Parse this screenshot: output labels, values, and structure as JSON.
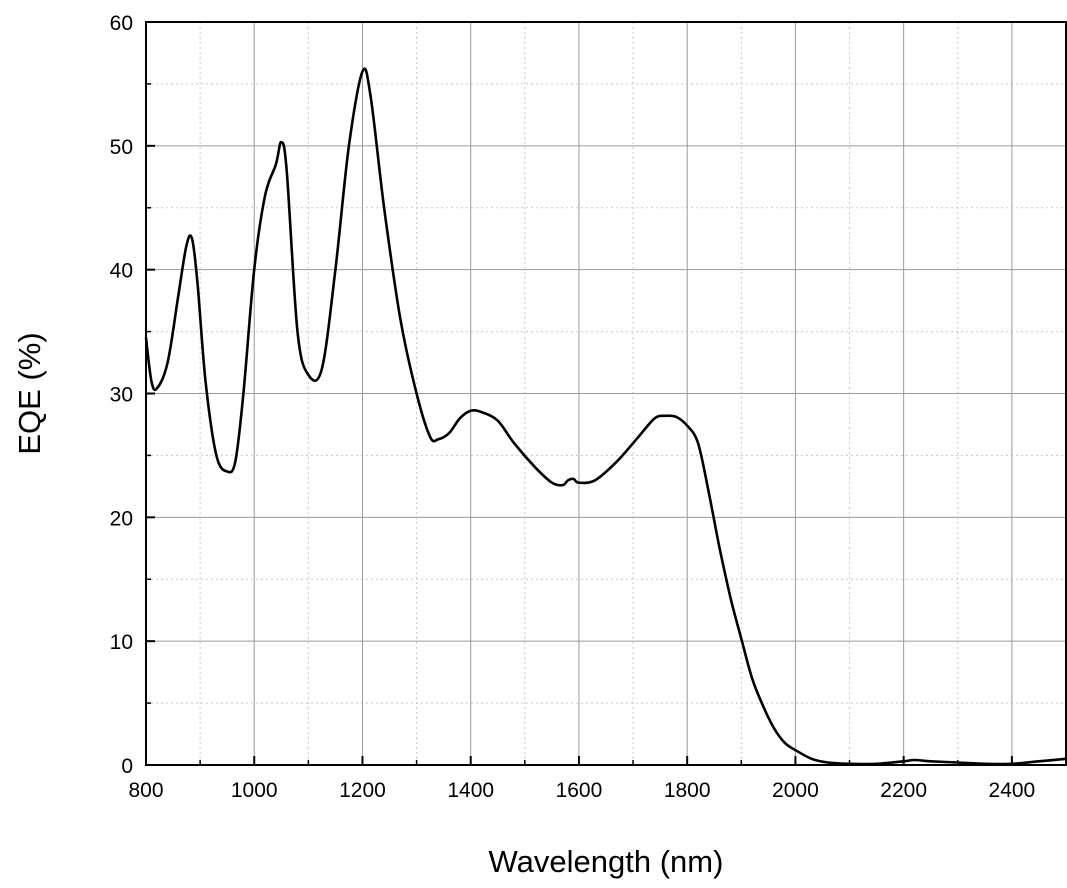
{
  "chart_data": {
    "type": "line",
    "title": "",
    "xlabel": "Wavelength (nm)",
    "ylabel": "EQE (%)",
    "xlim": [
      800,
      2500
    ],
    "ylim": [
      0,
      60
    ],
    "x_ticks": [
      800,
      1000,
      1200,
      1400,
      1600,
      1800,
      2000,
      2200,
      2400
    ],
    "y_ticks": [
      0,
      10,
      20,
      30,
      40,
      50,
      60
    ],
    "grid": true,
    "line_color": "#000000",
    "series": [
      {
        "x": [
          800,
          810,
          820,
          840,
          860,
          875,
          885,
          895,
          910,
          930,
          950,
          965,
          980,
          1000,
          1020,
          1040,
          1050,
          1060,
          1080,
          1100,
          1125,
          1150,
          1175,
          1200,
          1215,
          1240,
          1270,
          1300,
          1325,
          1340,
          1360,
          1380,
          1400,
          1420,
          1450,
          1480,
          1520,
          1550,
          1570,
          1580,
          1590,
          1600,
          1630,
          1670,
          1710,
          1740,
          1760,
          1780,
          1800,
          1820,
          1840,
          1860,
          1880,
          1900,
          1920,
          1940,
          1960,
          1980,
          2000,
          2030,
          2060,
          2100,
          2150,
          2200,
          2220,
          2250,
          2300,
          2350,
          2400,
          2450,
          2500
        ],
        "y": [
          34.5,
          31,
          30.4,
          32.5,
          38,
          42,
          42.5,
          39,
          31,
          25,
          23.7,
          24.5,
          30,
          40,
          46,
          48.5,
          50.3,
          48,
          35,
          31.5,
          32,
          40,
          50,
          56,
          54,
          45,
          36,
          30,
          26.5,
          26.3,
          26.8,
          28,
          28.6,
          28.5,
          27.8,
          26,
          24,
          22.8,
          22.6,
          23,
          23.1,
          22.8,
          23,
          24.5,
          26.5,
          28,
          28.2,
          28.1,
          27.4,
          26,
          22,
          17.5,
          13.5,
          10.2,
          7,
          4.8,
          3,
          1.8,
          1.2,
          0.5,
          0.2,
          0.1,
          0.1,
          0.3,
          0.4,
          0.3,
          0.2,
          0.1,
          0.1,
          0.3,
          0.5
        ]
      }
    ]
  }
}
